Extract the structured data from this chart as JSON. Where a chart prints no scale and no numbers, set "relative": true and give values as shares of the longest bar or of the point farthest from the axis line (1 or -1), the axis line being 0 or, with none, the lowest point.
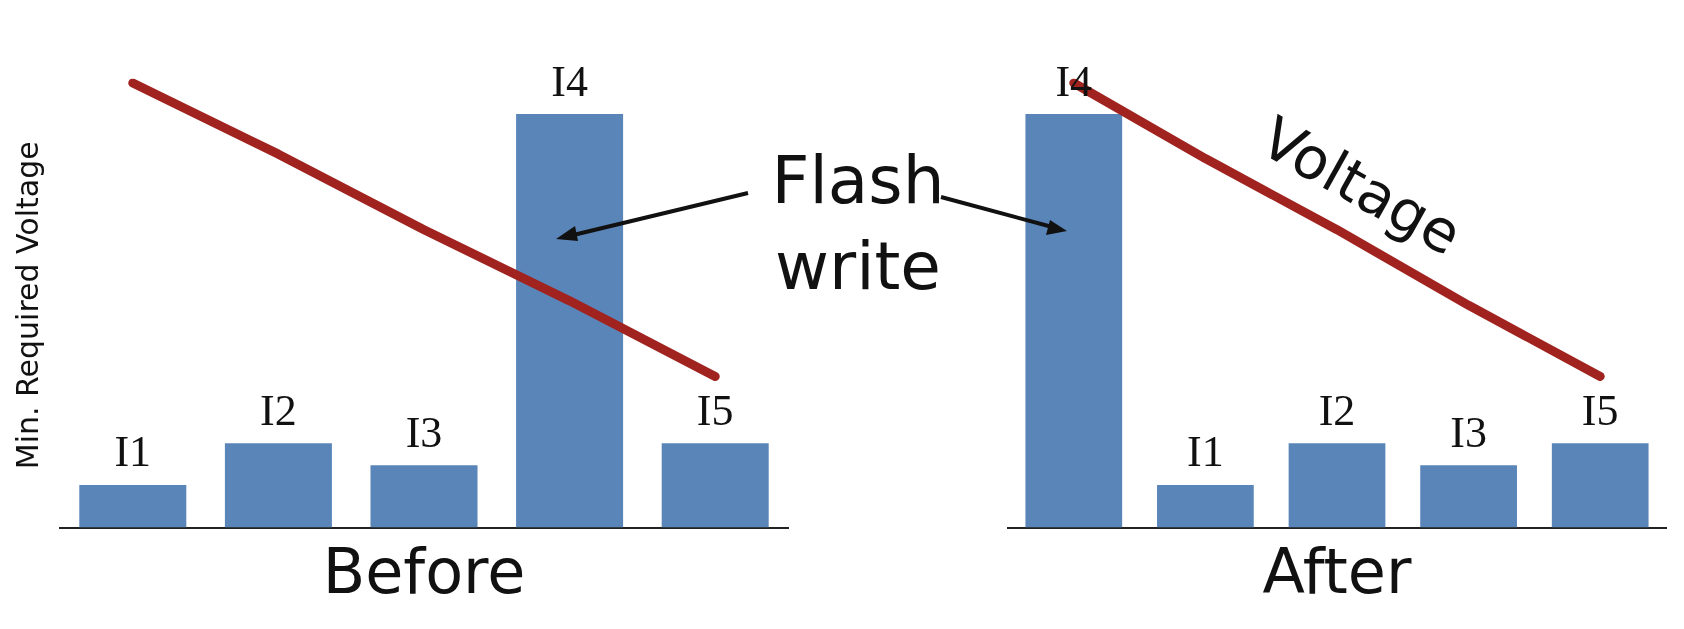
{
  "chart_data": [
    {
      "type": "bar",
      "xlabel": "Before",
      "ylabel": "Min. Required Voltage",
      "categories": [
        "I1",
        "I2",
        "I3",
        "I4",
        "I5"
      ],
      "relative": true,
      "legend": false,
      "marker": "none",
      "annotations": [
        "Flash write"
      ],
      "series": [
        {
          "color": "#5a85b9",
          "values": [
            0.096,
            0.19,
            0.14,
            0.93,
            0.19
          ]
        },
        {
          "type": "line",
          "color": "#a0231f",
          "values": [
            1,
            0.84,
            0.67,
            0.51,
            0.34
          ]
        }
      ]
    },
    {
      "type": "bar",
      "xlabel": "After",
      "categories": [
        "I4",
        "I1",
        "I2",
        "I3",
        "I5"
      ],
      "relative": true,
      "legend": false,
      "marker": "none",
      "series": [
        {
          "color": "#5a85b9",
          "values": [
            0.93,
            0.096,
            0.19,
            0.14,
            0.19
          ]
        },
        {
          "type": "line",
          "name": "Voltage",
          "color": "#a0231f",
          "values": [
            1,
            0.83,
            0.67,
            0.5,
            0.34
          ]
        }
      ]
    }
  ]
}
